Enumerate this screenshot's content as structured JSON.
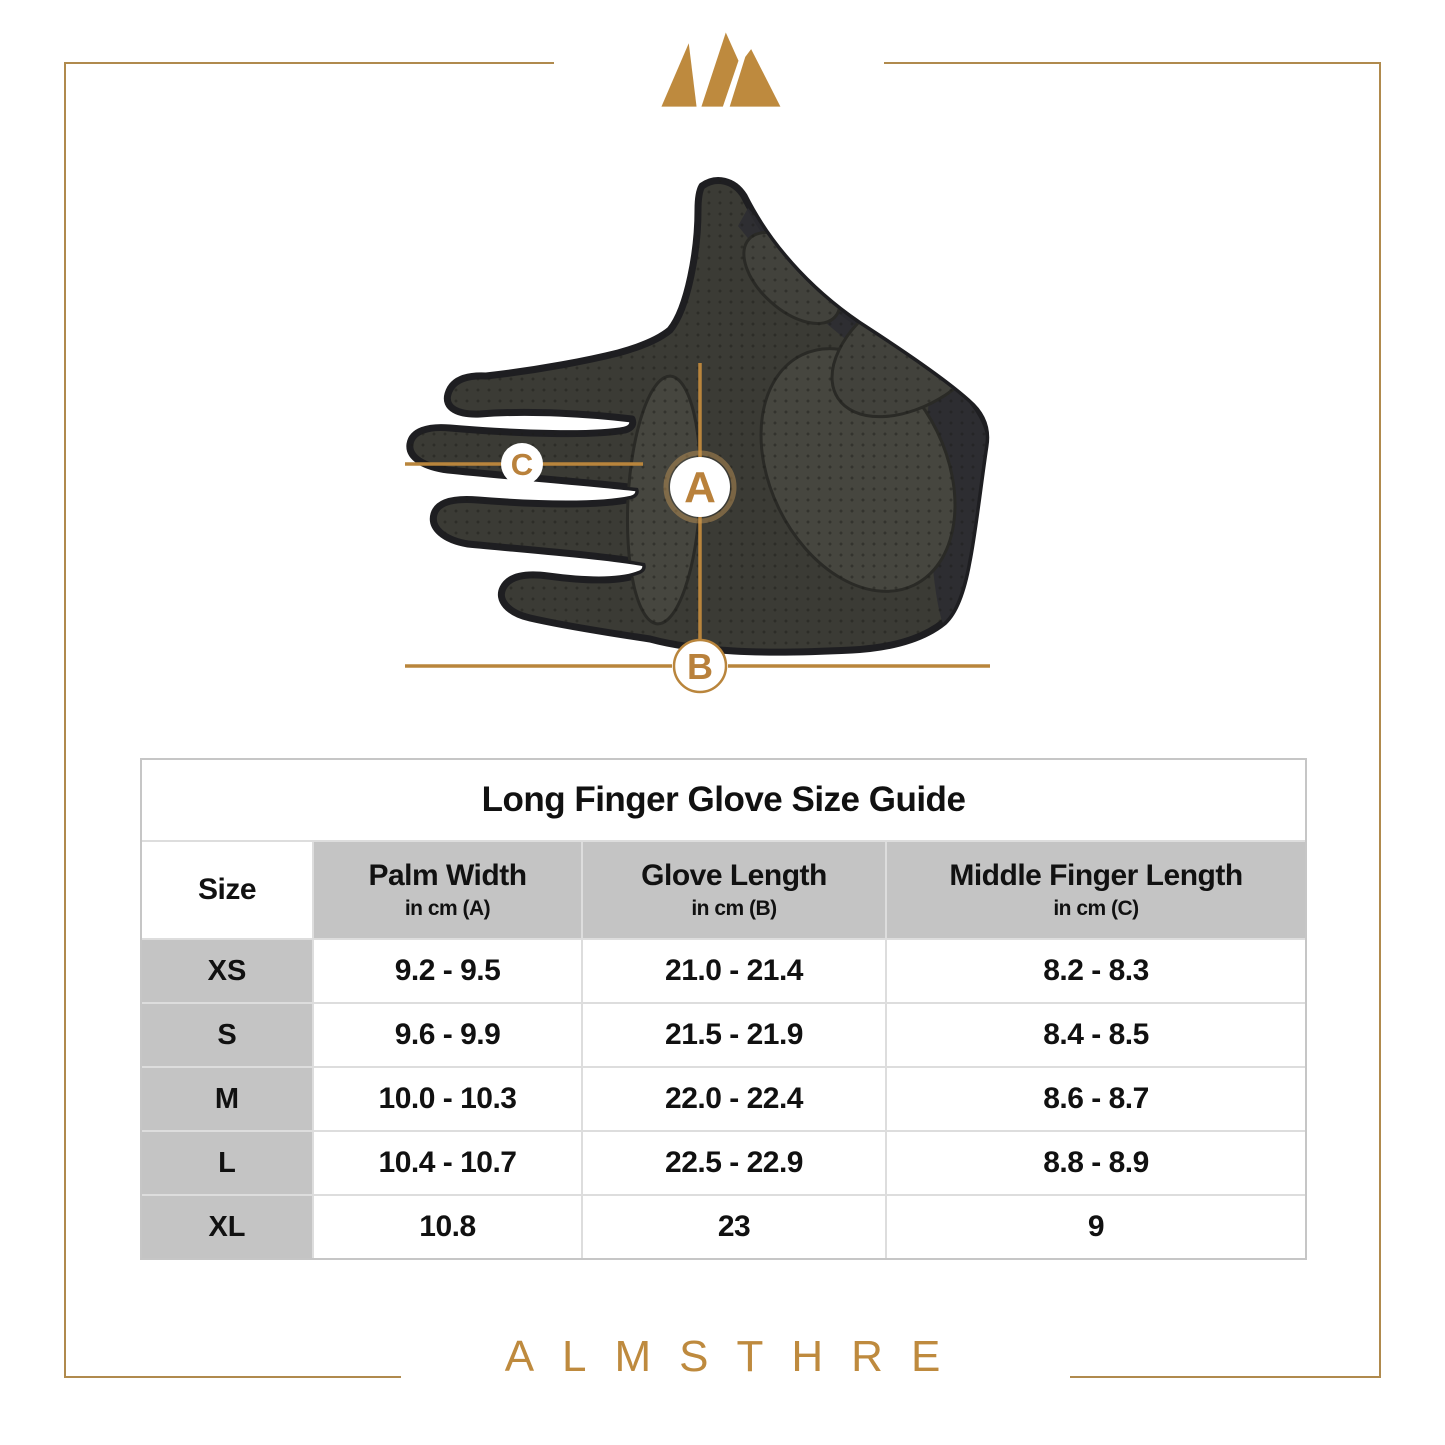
{
  "brand": {
    "wordmark": "ALMSTHRE"
  },
  "colors": {
    "gold": "#be8a3e",
    "dimension_line_gold": "#b9853c",
    "frame_gold": "#b08a4d",
    "table_header_gray": "#c4c4c4",
    "glove_body": "#3b3b35",
    "glove_accent_yellow": "#cfd34f"
  },
  "diagram": {
    "markers": [
      {
        "label": "A"
      },
      {
        "label": "B"
      },
      {
        "label": "C"
      }
    ]
  },
  "table": {
    "title": "Long Finger Glove Size Guide",
    "columns": [
      {
        "label": "Size",
        "sub": ""
      },
      {
        "label": "Palm Width",
        "sub": "in cm (A)"
      },
      {
        "label": "Glove Length",
        "sub": "in cm (B)"
      },
      {
        "label": "Middle Finger Length",
        "sub": "in cm (C)"
      }
    ],
    "rows": [
      [
        "XS",
        "9.2 - 9.5",
        "21.0 - 21.4",
        "8.2 - 8.3"
      ],
      [
        "S",
        "9.6 - 9.9",
        "21.5 - 21.9",
        "8.4 - 8.5"
      ],
      [
        "M",
        "10.0 - 10.3",
        "22.0 - 22.4",
        "8.6 - 8.7"
      ],
      [
        "L",
        "10.4 - 10.7",
        "22.5 - 22.9",
        "8.8 - 8.9"
      ],
      [
        "XL",
        "10.8",
        "23",
        "9"
      ]
    ]
  }
}
